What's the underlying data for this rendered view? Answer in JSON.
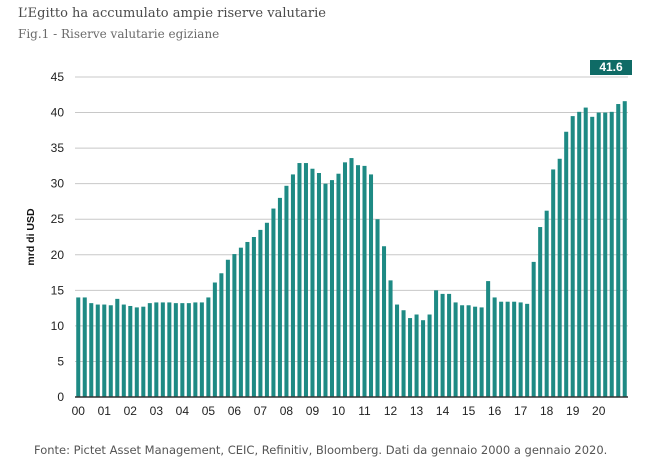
{
  "title": "L’Egitto ha accumulato ampie riserve valutarie",
  "subtitle": "Fig.1 - Riserve valutarie egiziane",
  "source": "Fonte: Pictet Asset Management, CEIC, Refinitiv, Bloomberg. Dati da gennaio 2000 a gennaio 2020.",
  "colors": {
    "bar": "#1e8a84",
    "callout": "#0f6b66",
    "grid": "#c8c8c8",
    "axis": "#333333"
  },
  "chart_data": {
    "type": "bar",
    "title": "",
    "xlabel": "",
    "ylabel": "mrd di USD",
    "ylim": [
      0,
      45
    ],
    "yticks": [
      0,
      5,
      10,
      15,
      20,
      25,
      30,
      35,
      40,
      45
    ],
    "grid": true,
    "xtick_labels": [
      "00",
      "01",
      "02",
      "03",
      "04",
      "05",
      "06",
      "07",
      "08",
      "09",
      "10",
      "11",
      "12",
      "13",
      "14",
      "15",
      "16",
      "17",
      "18",
      "19",
      "20"
    ],
    "callout_label": "41.6",
    "values": [
      14.0,
      14.0,
      13.2,
      13.0,
      13.0,
      12.9,
      13.8,
      13.0,
      12.8,
      12.6,
      12.7,
      13.2,
      13.3,
      13.3,
      13.3,
      13.2,
      13.2,
      13.2,
      13.3,
      13.3,
      14.0,
      16.1,
      17.4,
      19.3,
      20.1,
      21.0,
      21.8,
      22.5,
      23.5,
      24.5,
      26.5,
      28.0,
      29.7,
      31.3,
      32.9,
      32.9,
      32.1,
      31.5,
      30.0,
      30.5,
      31.4,
      33.0,
      33.6,
      32.6,
      32.5,
      31.3,
      25.0,
      21.2,
      16.4,
      13.0,
      12.2,
      11.1,
      11.6,
      10.8,
      11.6,
      15.0,
      14.5,
      14.5,
      13.3,
      12.9,
      12.9,
      12.7,
      12.6,
      16.3,
      14.0,
      13.4,
      13.4,
      13.4,
      13.3,
      13.1,
      19.0,
      23.9,
      26.2,
      32.0,
      33.5,
      37.3,
      39.5,
      40.1,
      40.7,
      39.4,
      40.0,
      40.0,
      40.1,
      41.2,
      41.6
    ]
  }
}
